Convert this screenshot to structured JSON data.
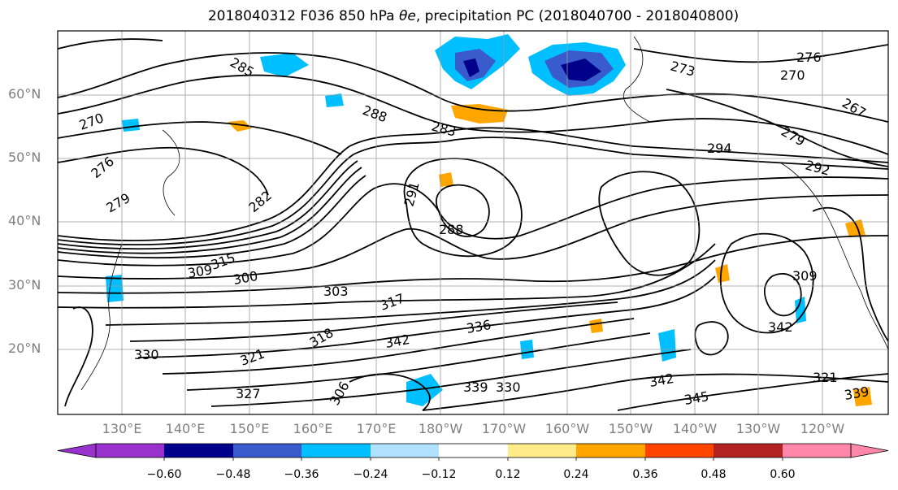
{
  "title_prefix": "2018040312 F036 850 hPa ",
  "title_symbol": "θe",
  "title_suffix": ", precipitation PC (2018040700 - 2018040800)",
  "lat_labels": [
    "60°N",
    "50°N",
    "40°N",
    "30°N",
    "20°N"
  ],
  "lon_labels": [
    "130°E",
    "140°E",
    "150°E",
    "160°E",
    "170°E",
    "180°W",
    "170°W",
    "160°W",
    "150°W",
    "140°W",
    "130°W",
    "120°W"
  ],
  "colorbar": {
    "colors": [
      "#9932cc",
      "#00008b",
      "#3a5bcb",
      "#00bfff",
      "#b0e2ff",
      "#ffffff",
      "#ffeb8a",
      "#ffa500",
      "#ff4500",
      "#b22222",
      "#ff88aa"
    ],
    "tick_labels": [
      "−0.60",
      "−0.48",
      "−0.36",
      "−0.24",
      "−0.12",
      "0.12",
      "0.24",
      "0.36",
      "0.48",
      "0.60"
    ]
  },
  "contour_labels": [
    "285",
    "270",
    "276",
    "279",
    "282",
    "288",
    "283",
    "291",
    "288",
    "294",
    "292",
    "273",
    "270",
    "276",
    "267",
    "279",
    "300",
    "303",
    "309",
    "315",
    "317",
    "318",
    "321",
    "330",
    "342",
    "336",
    "327",
    "345",
    "339",
    "330",
    "342",
    "309",
    "306",
    "339",
    "342",
    "321"
  ]
}
